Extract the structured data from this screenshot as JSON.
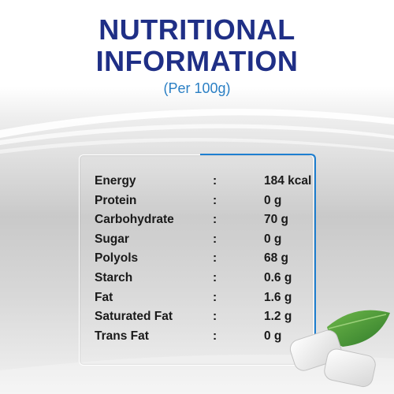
{
  "header": {
    "title_line1": "NUTRITIONAL",
    "title_line2": "INFORMATION",
    "subtitle": "(Per 100g)"
  },
  "colors": {
    "title": "#1f2f86",
    "subtitle": "#2a7fc4",
    "accent_border": "#1e7fd0"
  },
  "nutrition": {
    "rows": [
      {
        "label": "Energy",
        "value": "184 kcal"
      },
      {
        "label": "Protein",
        "value": "0 g"
      },
      {
        "label": "Carbohydrate",
        "value": "70 g"
      },
      {
        "label": "Sugar",
        "value": "0 g"
      },
      {
        "label": "Polyols",
        "value": "68 g"
      },
      {
        "label": "Starch",
        "value": "0.6 g"
      },
      {
        "label": " Fat",
        "value": "1.6 g"
      },
      {
        "label": "Saturated Fat",
        "value": "1.2 g"
      },
      {
        "label": "Trans Fat",
        "value": "0 g"
      }
    ],
    "separator": ":"
  },
  "decoration": {
    "image_name": "gum-pellets-with-mint-leaf"
  }
}
